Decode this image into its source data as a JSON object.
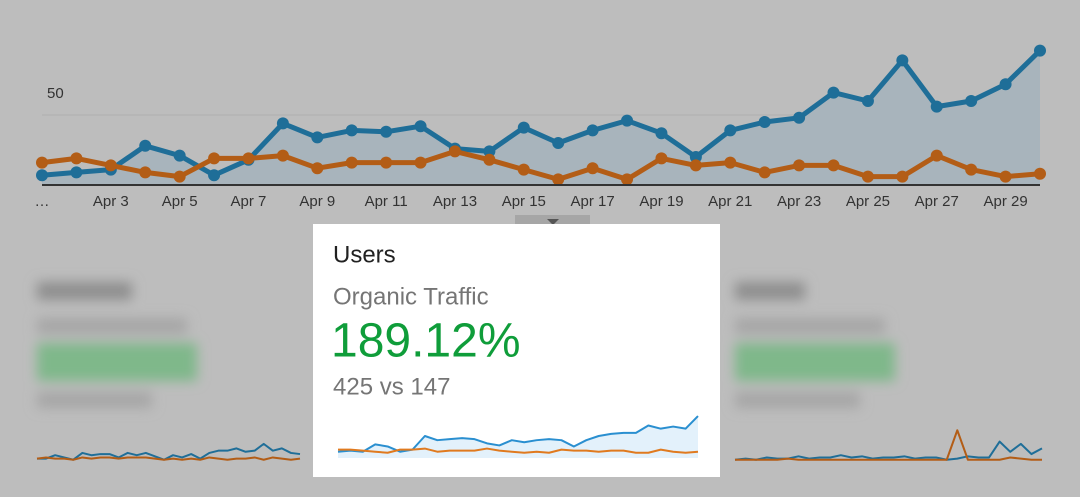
{
  "main_chart": {
    "type": "line",
    "categories": [
      "…",
      null,
      "Apr 3",
      null,
      "Apr 5",
      null,
      "Apr 7",
      null,
      "Apr 9",
      null,
      "Apr 11",
      null,
      "Apr 13",
      null,
      "Apr 15",
      null,
      "Apr 17",
      null,
      "Apr 19",
      null,
      "Apr 21",
      null,
      "Apr 23",
      null,
      "Apr 25",
      null,
      "Apr 27",
      null,
      "Apr 29",
      null
    ],
    "series": [
      {
        "color": "#1f6e98",
        "values": [
          7,
          9,
          11,
          28,
          21,
          7,
          18,
          44,
          34,
          39,
          38,
          42,
          26,
          24,
          41,
          30,
          39,
          46,
          37,
          20,
          39,
          45,
          48,
          66,
          60,
          89,
          56,
          60,
          72,
          96
        ]
      },
      {
        "color": "#b35d16",
        "values": [
          16,
          19,
          14,
          9,
          6,
          19,
          19,
          21,
          12,
          16,
          16,
          16,
          24,
          18,
          11,
          4,
          12,
          4,
          19,
          14,
          16,
          9,
          14,
          14,
          6,
          6,
          21,
          11,
          6,
          8
        ]
      }
    ],
    "ylim": [
      0,
      100
    ],
    "yticks": [
      50
    ],
    "grid": true
  },
  "card": {
    "title": "Users",
    "subtitle": "Organic Traffic",
    "change": "189.12%",
    "comparison": "425 vs 147",
    "sparkline": {
      "type": "line",
      "ylim": [
        0,
        42
      ],
      "series": [
        {
          "color": "#2a8fd0",
          "values": [
            6,
            7,
            6,
            13,
            11,
            6,
            8,
            21,
            17,
            18,
            19,
            18,
            14,
            12,
            17,
            15,
            17,
            18,
            17,
            11,
            17,
            21,
            23,
            24,
            24,
            31,
            28,
            30,
            28,
            40
          ]
        },
        {
          "color": "#e07a1f",
          "values": [
            8,
            8,
            7,
            6,
            5,
            8,
            8,
            9,
            6,
            7,
            7,
            7,
            9,
            7,
            6,
            5,
            6,
            5,
            8,
            7,
            7,
            6,
            7,
            7,
            5,
            5,
            8,
            6,
            5,
            6
          ]
        }
      ]
    }
  },
  "side_cards": [
    {
      "sparkline": {
        "type": "line",
        "ylim": [
          0,
          30
        ],
        "series": [
          {
            "color": "#1f6e98",
            "values": [
              3,
              3,
              6,
              4,
              2,
              8,
              6,
              7,
              7,
              4,
              8,
              6,
              8,
              5,
              2,
              6,
              4,
              7,
              3,
              8,
              10,
              10,
              12,
              9,
              10,
              16,
              10,
              12,
              8,
              7
            ]
          },
          {
            "color": "#b35d16",
            "values": [
              3,
              4,
              3,
              3,
              2,
              4,
              3,
              4,
              4,
              3,
              4,
              4,
              4,
              3,
              2,
              3,
              2,
              3,
              2,
              4,
              3,
              2,
              3,
              3,
              4,
              2,
              4,
              3,
              2,
              3
            ]
          }
        ]
      }
    },
    {
      "sparkline": {
        "type": "line",
        "ylim": [
          0,
          30
        ],
        "series": [
          {
            "color": "#1f6e98",
            "values": [
              2,
              3,
              2,
              4,
              3,
              3,
              5,
              3,
              4,
              4,
              6,
              4,
              5,
              3,
              4,
              4,
              5,
              3,
              4,
              4,
              2,
              3,
              5,
              4,
              4,
              18,
              9,
              16,
              7,
              12
            ]
          },
          {
            "color": "#b35d16",
            "values": [
              2,
              2,
              2,
              2,
              2,
              3,
              2,
              2,
              2,
              2,
              2,
              2,
              2,
              2,
              2,
              2,
              2,
              2,
              2,
              2,
              2,
              28,
              2,
              2,
              2,
              2,
              4,
              3,
              2,
              2
            ]
          }
        ]
      }
    }
  ]
}
